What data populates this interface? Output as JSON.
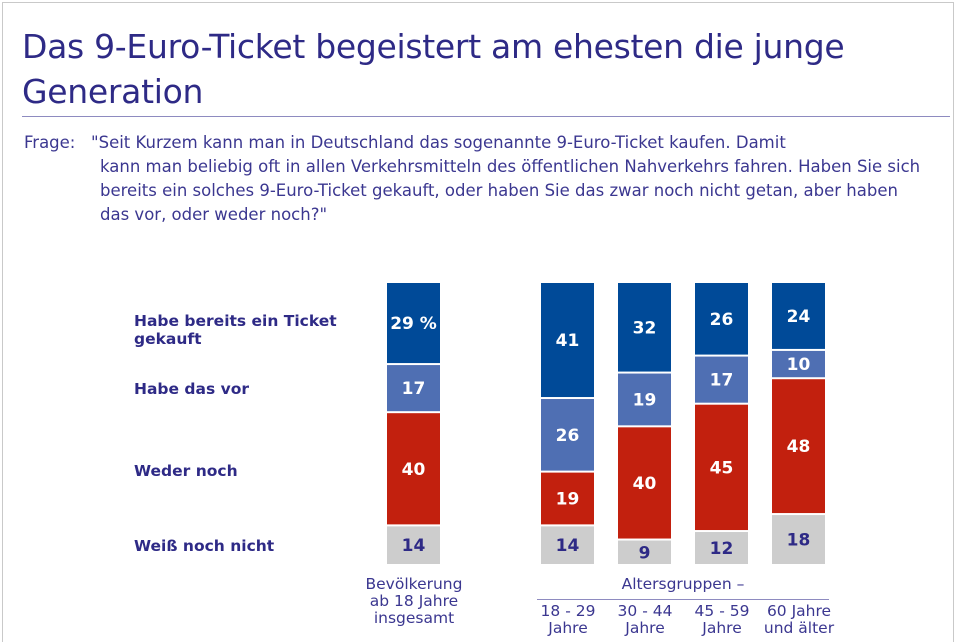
{
  "title": "Das 9-Euro-Ticket begeistert am ehesten die junge Generation",
  "question": {
    "label": "Frage:",
    "text_line1": "\"Seit Kurzem kann man in Deutschland das sogenannte 9-Euro-Ticket kaufen. Damit",
    "text_rest": "kann man beliebig oft in allen Verkehrsmitteln des öffentlichen Nahverkehrs fahren. Haben Sie sich bereits ein solches 9-Euro-Ticket gekauft, oder haben Sie das zwar noch nicht getan, aber haben das vor, oder weder noch?\""
  },
  "colors": {
    "bought": "#004a98",
    "plan": "#4f6fb3",
    "neither": "#c2200e",
    "dontknow": "#cdcdcd",
    "text_dark": "#2e2a86",
    "text_light": "#ffffff"
  },
  "chart_data": {
    "type": "bar",
    "stacked": true,
    "orientation": "vertical",
    "title": "Das 9-Euro-Ticket begeistert am ehesten die junge Generation",
    "unit": "%",
    "categories": [
      "Bevölkerung ab 18 Jahre insgesamt",
      "18 - 29 Jahre",
      "30 - 44 Jahre",
      "45 - 59 Jahre",
      "60 Jahre und älter"
    ],
    "category_labels": [
      [
        "Bevölkerung",
        "ab 18 Jahre",
        "insgesamt"
      ],
      [
        "18 - 29",
        "Jahre"
      ],
      [
        "30 - 44",
        "Jahre"
      ],
      [
        "45 - 59",
        "Jahre"
      ],
      [
        "60 Jahre",
        "und älter"
      ]
    ],
    "group_label": "Altersgruppen –",
    "series": [
      {
        "name": "Habe bereits ein Ticket gekauft",
        "key": "bought",
        "values": [
          29,
          41,
          32,
          26,
          24
        ]
      },
      {
        "name": "Habe das vor",
        "key": "plan",
        "values": [
          17,
          26,
          19,
          17,
          10
        ]
      },
      {
        "name": "Weder noch",
        "key": "neither",
        "values": [
          40,
          19,
          40,
          45,
          48
        ]
      },
      {
        "name": "Weiß noch nicht",
        "key": "dontknow",
        "values": [
          14,
          14,
          9,
          12,
          18
        ]
      }
    ],
    "value_labels": [
      [
        "29 %",
        "17",
        "40",
        "14"
      ],
      [
        "41",
        "26",
        "19",
        "14"
      ],
      [
        "32",
        "19",
        "40",
        "9"
      ],
      [
        "26",
        "17",
        "45",
        "12"
      ],
      [
        "24",
        "10",
        "48",
        "18"
      ]
    ],
    "ylim": [
      0,
      100
    ],
    "grid": false,
    "legend_placement": "left"
  }
}
